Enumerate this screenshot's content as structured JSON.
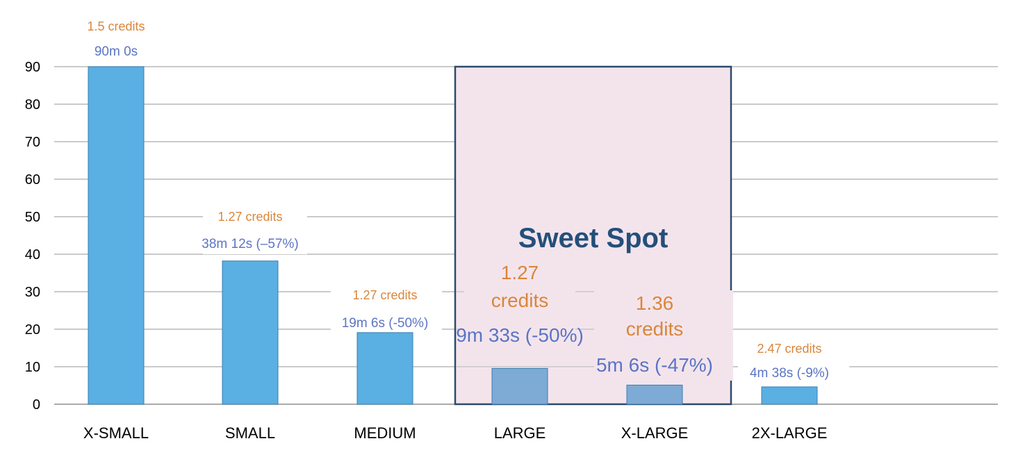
{
  "chart_data": {
    "type": "bar",
    "title": "",
    "xlabel": "",
    "ylabel": "",
    "ylim": [
      0,
      90
    ],
    "yticks": [
      0,
      10,
      20,
      30,
      40,
      50,
      60,
      70,
      80,
      90
    ],
    "grid": true,
    "categories": [
      "X-SMALL",
      "SMALL",
      "MEDIUM",
      "LARGE",
      "X-LARGE",
      "2X-LARGE"
    ],
    "values": [
      90,
      38.2,
      19.1,
      9.55,
      5.1,
      4.63
    ],
    "credit_labels": [
      "1.5 credits",
      "1.27 credits",
      "1.27 credits",
      "1.27\ncredits",
      "1.36\ncredits",
      "2.47 credits"
    ],
    "time_labels": [
      "90m 0s",
      "38m 12s (–57%)",
      "19m 6s (-50%)",
      "9m 33s (-50%)",
      "5m 6s (-47%)",
      "4m 38s (-9%)"
    ],
    "highlight": {
      "label": "Sweet Spot",
      "categories": [
        "LARGE",
        "X-LARGE"
      ],
      "top_value": 90
    },
    "colors": {
      "bar": "#5aafe3",
      "bar_highlight": "#7eaad6",
      "highlight_fill": "#f3e4ec",
      "highlight_border": "#2b4a6b",
      "credit_text": "#d9863a",
      "time_text": "#5b74c4",
      "sweet_spot_text": "#244f7a"
    }
  }
}
